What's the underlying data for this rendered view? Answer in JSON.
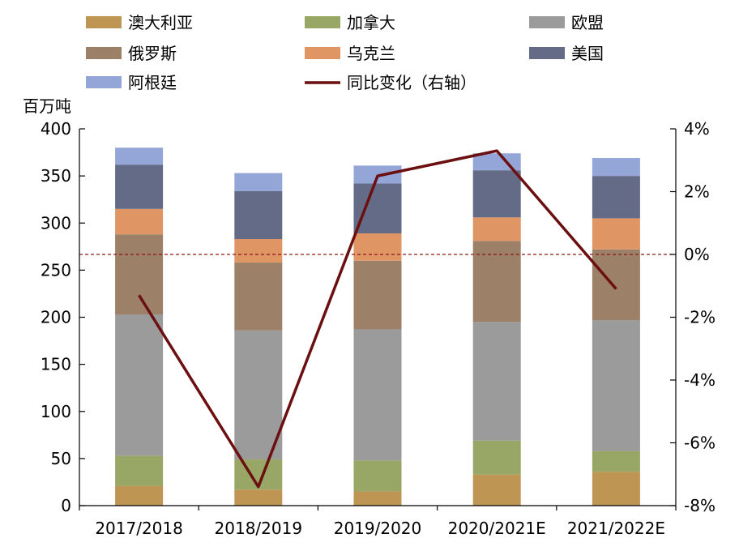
{
  "chart_data": {
    "type": "bar",
    "stacked": true,
    "categories": [
      "2017/2018",
      "2018/2019",
      "2019/2020",
      "2020/2021E",
      "2021/2022E"
    ],
    "ylabel": "百万吨",
    "ylim": [
      0,
      400
    ],
    "yticks": [
      "0",
      "50",
      "100",
      "150",
      "200",
      "250",
      "300",
      "350",
      "400"
    ],
    "y2lim": [
      -8,
      4
    ],
    "y2ticks": [
      "-8%",
      "-6%",
      "-4%",
      "-2%",
      "0%",
      "2%",
      "4%"
    ],
    "legend_position": "top",
    "series": [
      {
        "name": "澳大利亚",
        "color": "#BF9554",
        "values": [
          21,
          17,
          15,
          33,
          36
        ]
      },
      {
        "name": "加拿大",
        "color": "#98A766",
        "values": [
          32,
          32,
          33,
          36,
          22
        ]
      },
      {
        "name": "欧盟",
        "color": "#9B9B9B",
        "values": [
          150,
          137,
          139,
          126,
          139
        ]
      },
      {
        "name": "俄罗斯",
        "color": "#9C8068",
        "values": [
          85,
          72,
          73,
          86,
          75
        ]
      },
      {
        "name": "乌克兰",
        "color": "#DF9564",
        "values": [
          27,
          25,
          29,
          25,
          33
        ]
      },
      {
        "name": "美国",
        "color": "#646B87",
        "values": [
          47,
          51,
          53,
          50,
          45
        ]
      },
      {
        "name": "阿根廷",
        "color": "#94A6D8",
        "values": [
          18,
          19,
          19,
          18,
          19
        ]
      }
    ],
    "line_series": {
      "name": "同比变化（右轴）",
      "color": "#6B0F10",
      "axis": "right",
      "values": [
        -1.3,
        -7.4,
        2.5,
        3.3,
        -1.1
      ]
    },
    "zero_line_dashed": true
  }
}
